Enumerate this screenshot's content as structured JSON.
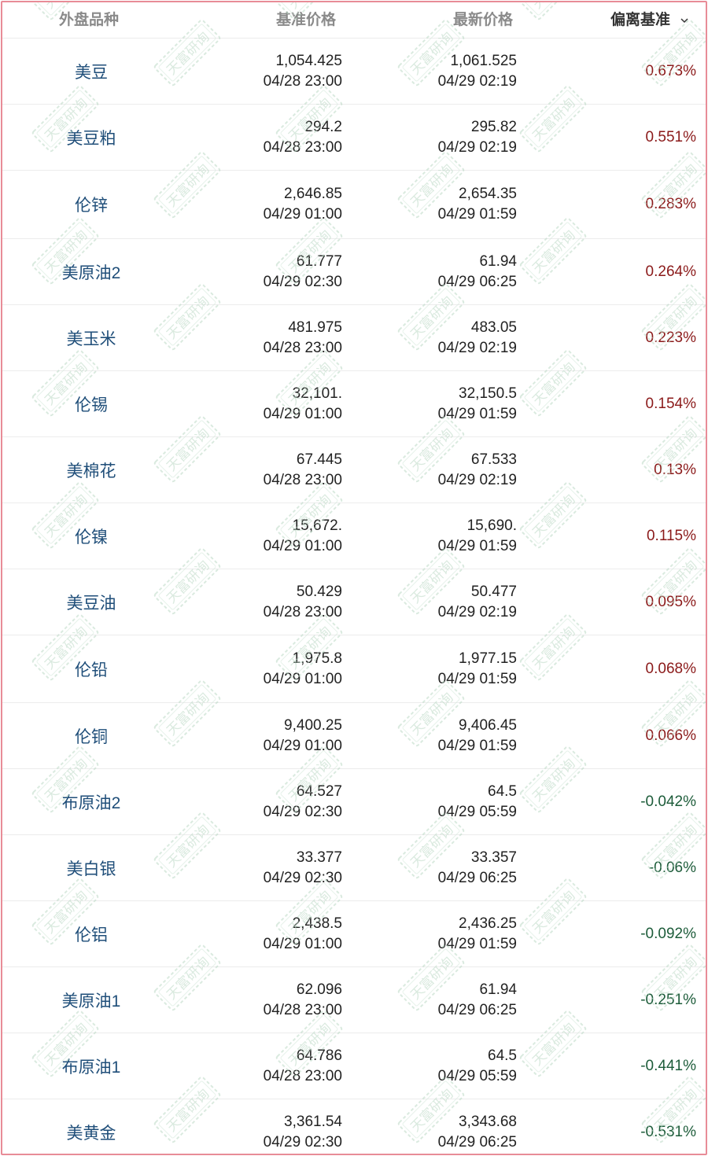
{
  "header": {
    "name_label": "外盘品种",
    "base_label": "基准价格",
    "latest_label": "最新价格",
    "deviation_label": "偏离基准"
  },
  "watermark": {
    "text": "天富研询"
  },
  "colors": {
    "positive": "#8b1a1a",
    "negative": "#1d5c3a",
    "name": "#1f4e79",
    "frame": "#e88c97"
  },
  "rows": [
    {
      "name": "美豆",
      "base_price": "1,054.425",
      "base_time": "04/28 23:00",
      "latest_price": "1,061.525",
      "latest_time": "04/29 02:19",
      "deviation": "0.673%",
      "dir": "pos"
    },
    {
      "name": "美豆粕",
      "base_price": "294.2",
      "base_time": "04/28 23:00",
      "latest_price": "295.82",
      "latest_time": "04/29 02:19",
      "deviation": "0.551%",
      "dir": "pos"
    },
    {
      "name": "伦锌",
      "base_price": "2,646.85",
      "base_time": "04/29 01:00",
      "latest_price": "2,654.35",
      "latest_time": "04/29 01:59",
      "deviation": "0.283%",
      "dir": "pos"
    },
    {
      "name": "美原油2",
      "base_price": "61.777",
      "base_time": "04/29 02:30",
      "latest_price": "61.94",
      "latest_time": "04/29 06:25",
      "deviation": "0.264%",
      "dir": "pos"
    },
    {
      "name": "美玉米",
      "base_price": "481.975",
      "base_time": "04/28 23:00",
      "latest_price": "483.05",
      "latest_time": "04/29 02:19",
      "deviation": "0.223%",
      "dir": "pos"
    },
    {
      "name": "伦锡",
      "base_price": "32,101.",
      "base_time": "04/29 01:00",
      "latest_price": "32,150.5",
      "latest_time": "04/29 01:59",
      "deviation": "0.154%",
      "dir": "pos"
    },
    {
      "name": "美棉花",
      "base_price": "67.445",
      "base_time": "04/28 23:00",
      "latest_price": "67.533",
      "latest_time": "04/29 02:19",
      "deviation": "0.13%",
      "dir": "pos"
    },
    {
      "name": "伦镍",
      "base_price": "15,672.",
      "base_time": "04/29 01:00",
      "latest_price": "15,690.",
      "latest_time": "04/29 01:59",
      "deviation": "0.115%",
      "dir": "pos"
    },
    {
      "name": "美豆油",
      "base_price": "50.429",
      "base_time": "04/28 23:00",
      "latest_price": "50.477",
      "latest_time": "04/29 02:19",
      "deviation": "0.095%",
      "dir": "pos"
    },
    {
      "name": "伦铅",
      "base_price": "1,975.8",
      "base_time": "04/29 01:00",
      "latest_price": "1,977.15",
      "latest_time": "04/29 01:59",
      "deviation": "0.068%",
      "dir": "pos"
    },
    {
      "name": "伦铜",
      "base_price": "9,400.25",
      "base_time": "04/29 01:00",
      "latest_price": "9,406.45",
      "latest_time": "04/29 01:59",
      "deviation": "0.066%",
      "dir": "pos"
    },
    {
      "name": "布原油2",
      "base_price": "64.527",
      "base_time": "04/29 02:30",
      "latest_price": "64.5",
      "latest_time": "04/29 05:59",
      "deviation": "-0.042%",
      "dir": "neg"
    },
    {
      "name": "美白银",
      "base_price": "33.377",
      "base_time": "04/29 02:30",
      "latest_price": "33.357",
      "latest_time": "04/29 06:25",
      "deviation": "-0.06%",
      "dir": "neg"
    },
    {
      "name": "伦铝",
      "base_price": "2,438.5",
      "base_time": "04/29 01:00",
      "latest_price": "2,436.25",
      "latest_time": "04/29 01:59",
      "deviation": "-0.092%",
      "dir": "neg"
    },
    {
      "name": "美原油1",
      "base_price": "62.096",
      "base_time": "04/28 23:00",
      "latest_price": "61.94",
      "latest_time": "04/29 06:25",
      "deviation": "-0.251%",
      "dir": "neg"
    },
    {
      "name": "布原油1",
      "base_price": "64.786",
      "base_time": "04/28 23:00",
      "latest_price": "64.5",
      "latest_time": "04/29 05:59",
      "deviation": "-0.441%",
      "dir": "neg"
    },
    {
      "name": "美黄金",
      "base_price": "3,361.54",
      "base_time": "04/29 02:30",
      "latest_price": "3,343.68",
      "latest_time": "04/29 06:25",
      "deviation": "-0.531%",
      "dir": "neg"
    }
  ]
}
